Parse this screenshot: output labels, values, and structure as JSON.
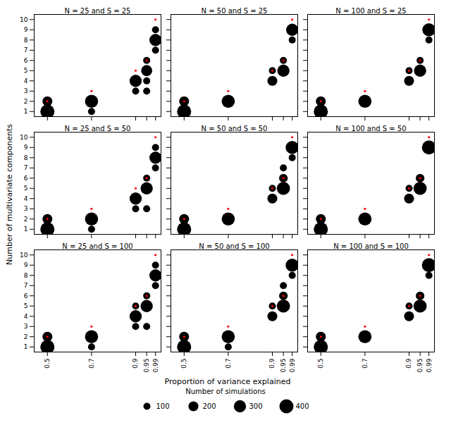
{
  "chart_data": {
    "type": "scatter",
    "xlabel": "Proportion of variance explained",
    "ylabel": "Number of multivariate components",
    "xlim": [
      0.44,
      1.015
    ],
    "ylim": [
      0.5,
      10.5
    ],
    "xticks": [
      0.5,
      0.7,
      0.9,
      0.95,
      0.99
    ],
    "yticks": [
      1,
      2,
      3,
      4,
      5,
      6,
      7,
      8,
      9,
      10
    ],
    "grid": false,
    "legend": "bottom",
    "legend_title": "Number of simulations",
    "legend_sizes": [
      100,
      200,
      300,
      400
    ],
    "panels": [
      {
        "title": "N = 25 and S = 25",
        "tick_labels": "y",
        "series": [
          {
            "color": "black",
            "x": [
              0.5,
              0.5,
              0.7,
              0.7,
              0.9,
              0.9,
              0.95,
              0.95,
              0.95,
              0.95,
              0.99,
              0.99,
              0.99
            ],
            "y": [
              1,
              2,
              1,
              2,
              3,
              4,
              3,
              4,
              5,
              6,
              7,
              8,
              9
            ],
            "sizes": [
              400,
              200,
              100,
              350,
              100,
              300,
              100,
              100,
              250,
              100,
              100,
              300,
              100
            ]
          },
          {
            "color": "red",
            "x": [
              0.5,
              0.7,
              0.9,
              0.95,
              0.99
            ],
            "y": [
              2,
              3,
              5,
              6,
              10
            ]
          }
        ]
      },
      {
        "title": "N = 50 and S = 25",
        "tick_labels": false,
        "series": [
          {
            "color": "black",
            "x": [
              0.5,
              0.5,
              0.7,
              0.9,
              0.9,
              0.95,
              0.95,
              0.99,
              0.99
            ],
            "y": [
              1,
              2,
              2,
              4,
              5,
              5,
              6,
              8,
              9
            ],
            "sizes": [
              400,
              200,
              350,
              200,
              100,
              300,
              100,
              100,
              300
            ]
          },
          {
            "color": "red",
            "x": [
              0.5,
              0.7,
              0.9,
              0.95,
              0.99
            ],
            "y": [
              2,
              3,
              5,
              6,
              10
            ]
          }
        ]
      },
      {
        "title": "N = 100 and S = 25",
        "tick_labels": false,
        "series": [
          {
            "color": "black",
            "x": [
              0.5,
              0.5,
              0.7,
              0.9,
              0.9,
              0.95,
              0.95,
              0.99,
              0.99
            ],
            "y": [
              1,
              2,
              2,
              4,
              5,
              5,
              6,
              8,
              9
            ],
            "sizes": [
              400,
              200,
              350,
              200,
              100,
              300,
              100,
              100,
              350
            ]
          },
          {
            "color": "red",
            "x": [
              0.5,
              0.7,
              0.9,
              0.95,
              0.99
            ],
            "y": [
              2,
              3,
              5,
              6,
              10
            ]
          }
        ]
      },
      {
        "title": "N = 25 and S = 50",
        "tick_labels": "y",
        "series": [
          {
            "color": "black",
            "x": [
              0.5,
              0.5,
              0.7,
              0.7,
              0.9,
              0.9,
              0.95,
              0.95,
              0.95,
              0.99,
              0.99,
              0.99
            ],
            "y": [
              1,
              2,
              1,
              2,
              3,
              4,
              3,
              5,
              6,
              7,
              8,
              9
            ],
            "sizes": [
              400,
              200,
              100,
              350,
              100,
              300,
              100,
              300,
              100,
              100,
              300,
              100
            ]
          },
          {
            "color": "red",
            "x": [
              0.5,
              0.7,
              0.9,
              0.95,
              0.99
            ],
            "y": [
              2,
              3,
              5,
              6,
              10
            ]
          }
        ]
      },
      {
        "title": "N = 50 and S = 50",
        "tick_labels": false,
        "series": [
          {
            "color": "black",
            "x": [
              0.5,
              0.5,
              0.7,
              0.9,
              0.9,
              0.95,
              0.95,
              0.95,
              0.99,
              0.99
            ],
            "y": [
              1,
              2,
              2,
              4,
              5,
              5,
              6,
              7,
              8,
              9
            ],
            "sizes": [
              400,
              200,
              350,
              200,
              100,
              350,
              150,
              100,
              100,
              350
            ]
          },
          {
            "color": "red",
            "x": [
              0.5,
              0.7,
              0.9,
              0.95,
              0.99
            ],
            "y": [
              2,
              3,
              5,
              6,
              10
            ]
          }
        ]
      },
      {
        "title": "N = 100 and S = 50",
        "tick_labels": false,
        "series": [
          {
            "color": "black",
            "x": [
              0.5,
              0.5,
              0.7,
              0.9,
              0.9,
              0.95,
              0.95,
              0.99
            ],
            "y": [
              1,
              2,
              2,
              4,
              5,
              5,
              6,
              9
            ],
            "sizes": [
              400,
              200,
              350,
              200,
              100,
              350,
              150,
              400
            ]
          },
          {
            "color": "red",
            "x": [
              0.5,
              0.7,
              0.9,
              0.95,
              0.99
            ],
            "y": [
              2,
              3,
              5,
              6,
              10
            ]
          }
        ]
      },
      {
        "title": "N = 25 and S = 100",
        "tick_labels": true,
        "series": [
          {
            "color": "black",
            "x": [
              0.5,
              0.5,
              0.7,
              0.7,
              0.9,
              0.9,
              0.9,
              0.95,
              0.95,
              0.95,
              0.99,
              0.99,
              0.99
            ],
            "y": [
              1,
              2,
              1,
              2,
              3,
              4,
              5,
              3,
              5,
              6,
              7,
              8,
              9
            ],
            "sizes": [
              400,
              200,
              100,
              350,
              100,
              300,
              100,
              100,
              300,
              100,
              100,
              300,
              100
            ]
          },
          {
            "color": "red",
            "x": [
              0.5,
              0.7,
              0.9,
              0.95,
              0.99
            ],
            "y": [
              2,
              3,
              5,
              6,
              10
            ]
          }
        ]
      },
      {
        "title": "N = 50 and S = 100",
        "tick_labels": "x",
        "series": [
          {
            "color": "black",
            "x": [
              0.5,
              0.5,
              0.7,
              0.7,
              0.9,
              0.9,
              0.95,
              0.95,
              0.95,
              0.99,
              0.99
            ],
            "y": [
              1,
              2,
              1,
              2,
              4,
              5,
              5,
              6,
              7,
              8,
              9
            ],
            "sizes": [
              400,
              200,
              100,
              350,
              200,
              100,
              350,
              150,
              100,
              100,
              350
            ]
          },
          {
            "color": "red",
            "x": [
              0.5,
              0.7,
              0.9,
              0.95,
              0.99
            ],
            "y": [
              2,
              3,
              5,
              6,
              10
            ]
          }
        ]
      },
      {
        "title": "N = 100 and S = 100",
        "tick_labels": "x",
        "series": [
          {
            "color": "black",
            "x": [
              0.5,
              0.5,
              0.7,
              0.9,
              0.9,
              0.95,
              0.95,
              0.99,
              0.99
            ],
            "y": [
              1,
              2,
              2,
              4,
              5,
              5,
              6,
              8,
              9
            ],
            "sizes": [
              400,
              200,
              350,
              200,
              100,
              350,
              150,
              100,
              400
            ]
          },
          {
            "color": "red",
            "x": [
              0.5,
              0.7,
              0.9,
              0.95,
              0.99
            ],
            "y": [
              2,
              3,
              5,
              6,
              10
            ]
          }
        ]
      }
    ]
  }
}
